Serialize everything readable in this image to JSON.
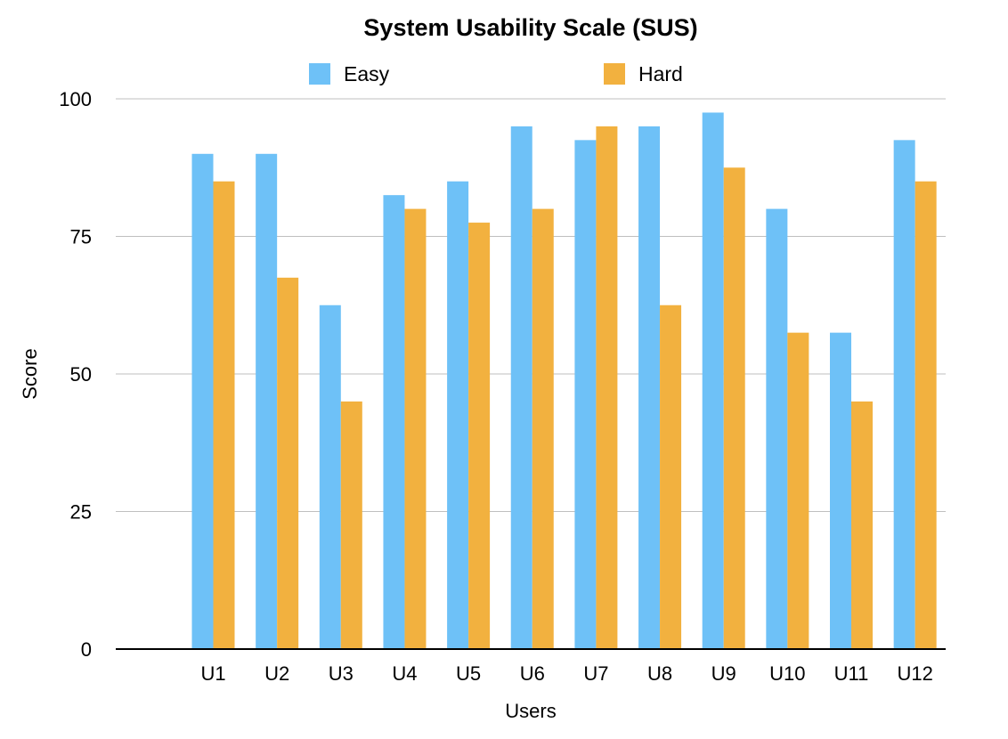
{
  "chart_data": {
    "type": "bar",
    "title": "System Usability Scale (SUS)",
    "xlabel": "Users",
    "ylabel": "Score",
    "ylim": [
      0,
      100
    ],
    "yticks": [
      "0",
      "25",
      "50",
      "75",
      "100"
    ],
    "grid": true,
    "legend_position": "top",
    "categories": [
      "U1",
      "U2",
      "U3",
      "U4",
      "U5",
      "U6",
      "U7",
      "U8",
      "U9",
      "U10",
      "U11",
      "U12"
    ],
    "series": [
      {
        "name": "Easy",
        "color": "#6EC1F7",
        "values": [
          90,
          90,
          62.5,
          82.5,
          85,
          95,
          92.5,
          95,
          97.5,
          80,
          57.5,
          92.5
        ]
      },
      {
        "name": "Hard",
        "color": "#F2B13F",
        "values": [
          85,
          67.5,
          45,
          80,
          77.5,
          80,
          95,
          62.5,
          87.5,
          57.5,
          45,
          85
        ]
      }
    ]
  }
}
